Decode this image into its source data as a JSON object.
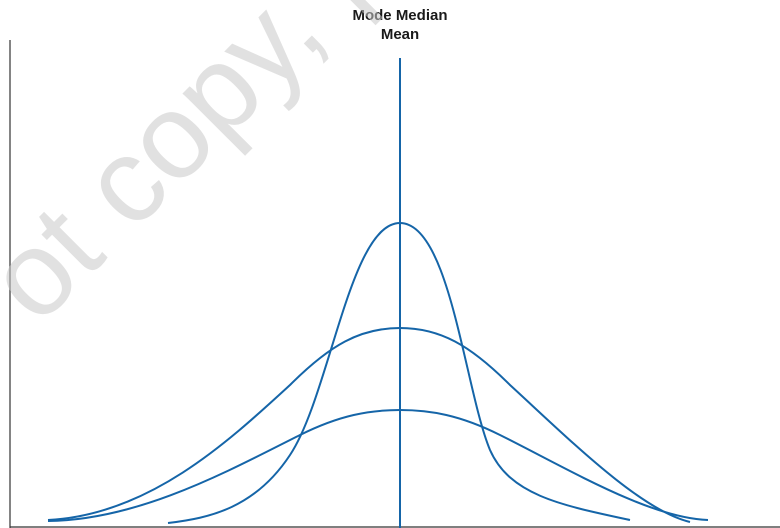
{
  "labels": {
    "line1": "Mode Median",
    "line2": "Mean"
  },
  "watermark": "ot copy, po",
  "colors": {
    "curve": "#1565a8",
    "axis": "#333333"
  }
}
